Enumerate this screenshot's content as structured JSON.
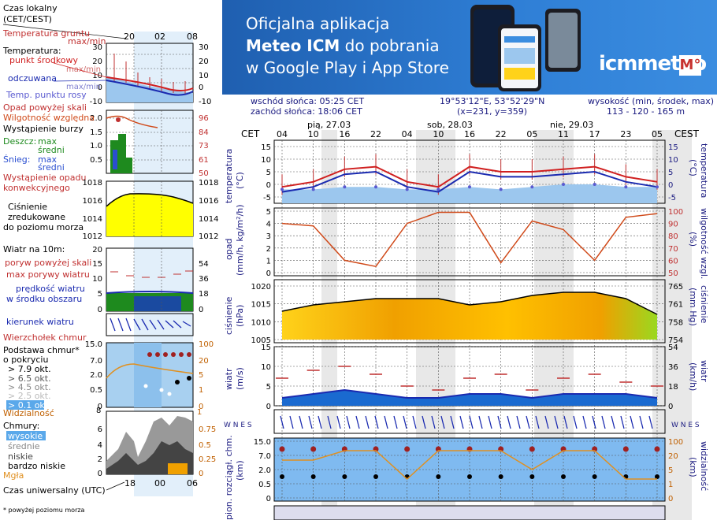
{
  "banner": {
    "line1": "Oficjalna aplikacja",
    "line2_bold": "Meteo ICM",
    "line2_rest": " do pobrania",
    "line3": "w Google Play i App Store",
    "brand": "icmmeteo",
    "brand_box": "M°"
  },
  "info": {
    "sunrise": "wschód słońca: 05:25 CET",
    "sunset": "zachód słońca: 18:06 CET",
    "coords": "19°53'12\"E, 53°52'29\"N",
    "grid": "(x=231, y=359)",
    "height_label": "wysokość (min, środek, max)",
    "height_values": "113 - 120 - 165 m"
  },
  "legend": {
    "local_time": "Czas lokalny",
    "local_time2": "(CET/CEST)",
    "ground_temp": "Temperatura gruntu",
    "ground_temp2": "max/min",
    "temperature": "Temperatura:",
    "mid_point": "punkt środkowy",
    "maxmin": "max/min",
    "feels": "odczuwana",
    "feels_maxmin": "max/min",
    "dew": "Temp. punktu rosy",
    "precip_above": "Opad powyżej skali",
    "humidity": "Wilgotność względna",
    "storm": "Wystąpienie burzy",
    "rain": "Deszcz:",
    "rain_max": "max",
    "rain_mid": "średni",
    "snow": "Śnieg:",
    "snow_max": "max",
    "snow_mid": "średni",
    "precip_occ": "Wystąpienie opadu",
    "convective": "konwekcyjnego",
    "pressure1": "Ciśnienie",
    "pressure2": "zredukowane",
    "pressure3": "do poziomu morza",
    "wind10": "Wiatr na 10m:",
    "gust_above": "poryw powyżej skali",
    "gust_max": "max porywy wiatru",
    "wind_speed": "prędkość wiatru",
    "wind_area": "w środku obszaru",
    "wind_dir": "kierunek wiatru",
    "cloud_top": "Wierzchołek chmur",
    "cloud_base": "Podstawa chmur*",
    "cloud_base2": "o pokryciu",
    "okt1": "> 7.9 okt.",
    "okt2": "> 6.5 okt.",
    "okt3": "> 4.5 okt.",
    "okt4": "> 2.5 okt.",
    "okt5": "> 0.1 okt.",
    "visibility": "Widzialność",
    "clouds": "Chmury:",
    "high": "wysokie",
    "mid": "średnie",
    "low": "niskie",
    "verylow": "bardzo niskie",
    "fog": "Mgła",
    "utc": "Czas uniwersalny (UTC)",
    "footnote": "* powyżej poziomu morza",
    "top_ticks": [
      "20",
      "02",
      "08"
    ],
    "bottom_ticks": [
      "18",
      "00",
      "06"
    ],
    "temp_ticks": [
      "30",
      "20",
      "10",
      "0",
      "-10"
    ],
    "hum_ticks_l": [
      "2.0",
      "1.5",
      "1.0",
      "0.5"
    ],
    "hum_ticks_r": [
      "96",
      "84",
      "73",
      "61",
      "50"
    ],
    "pres_ticks": [
      "1018",
      "1016",
      "1014",
      "1012"
    ],
    "wind_ticks_l": [
      "20",
      "15",
      "10",
      "5",
      "0"
    ],
    "wind_ticks_r": [
      "72",
      "54",
      "36",
      "18",
      "0"
    ],
    "cb_ticks_l": [
      "15.0",
      "7.0",
      "2.0",
      "0.5",
      "0"
    ],
    "cb_ticks_r": [
      "100",
      "20",
      "5",
      "1",
      "0"
    ],
    "vis_ticks": [
      "8",
      "1"
    ],
    "cl_ticks_l": [
      "6",
      "4",
      "2",
      "0"
    ],
    "cl_ticks_r": [
      "0.75",
      "0.5",
      "0.25",
      "0"
    ]
  },
  "main_labels": {
    "cet_left": "CET",
    "cet_right": "CEST",
    "days": [
      "pią, 27.03",
      "sob, 28.03",
      "nie, 29.03"
    ],
    "hours": [
      "04",
      "10",
      "16",
      "22",
      "04",
      "10",
      "16",
      "22",
      "05",
      "11",
      "17",
      "23",
      "05"
    ],
    "temp_left": "temperatura",
    "temp_unit": "(°C)",
    "precip_left": "opad",
    "precip_unit": "(mm/h, kg/m²/h)",
    "hum_right": "wilgotność wzgl.",
    "hum_unit": "(%)",
    "pres_left": "ciśnienie",
    "pres_unit": "(hPa)",
    "pres_right": "ciśnienie",
    "pres_unit_r": "(mm Hg)",
    "wind_left": "wiatr",
    "wind_unit": "(m/s)",
    "wind_right": "wiatr",
    "wind_unit_r": "(km/h)",
    "cloud_left": "pion. rozciągł. chm.",
    "cloud_unit": "(km)",
    "vis_right": "widzialność",
    "vis_unit": "(km)",
    "dir_letters": "W N E S"
  },
  "chart_data": {
    "type": "line",
    "x": [
      "04",
      "10",
      "16",
      "22",
      "04",
      "10",
      "16",
      "22",
      "05",
      "11",
      "17",
      "23",
      "05"
    ],
    "temperature": {
      "ylim": [
        -5,
        15
      ],
      "ticks": [
        "15",
        "10",
        "5",
        "0",
        "-5"
      ],
      "mid": [
        -1,
        1,
        6,
        7,
        1,
        -1,
        7,
        5,
        5,
        6,
        7,
        3,
        1
      ],
      "feels": [
        -3,
        -1,
        4,
        5,
        -1,
        -3,
        5,
        3,
        3,
        4,
        5,
        1,
        -1
      ],
      "dew": [
        -2,
        -2,
        -1,
        -1,
        -2,
        -2,
        -1,
        -2,
        -1,
        0,
        0,
        -1,
        -1
      ]
    },
    "precip_humidity": {
      "ylim_precip": [
        0,
        5
      ],
      "ylim_hum": [
        50,
        100
      ],
      "ticks_l": [
        "5",
        "4",
        "3",
        "2",
        "1",
        "0"
      ],
      "ticks_r": [
        "100",
        "90",
        "80",
        "70",
        "60",
        "50"
      ],
      "humidity": [
        90,
        88,
        60,
        55,
        90,
        99,
        99,
        58,
        92,
        85,
        60,
        95,
        98
      ]
    },
    "pressure": {
      "ylim": [
        1005,
        1022
      ],
      "ticks_l": [
        "1020",
        "1015",
        "1010",
        "1005"
      ],
      "ticks_r": [
        "765",
        "761",
        "758",
        "754"
      ],
      "values": [
        1014,
        1016,
        1017,
        1018,
        1018,
        1018,
        1016,
        1017,
        1019,
        1020,
        1020,
        1018,
        1013
      ]
    },
    "wind": {
      "ylim": [
        0,
        15
      ],
      "ticks_l": [
        "15",
        "10",
        "5",
        "0"
      ],
      "ticks_r": [
        "54",
        "36",
        "18",
        "0"
      ],
      "speed": [
        2,
        3,
        4,
        3,
        2,
        2,
        3,
        3,
        2,
        3,
        3,
        3,
        2
      ],
      "gust": [
        7,
        9,
        10,
        8,
        5,
        4,
        7,
        8,
        4,
        7,
        8,
        6,
        5
      ]
    },
    "clouds": {
      "ticks_l": [
        "15.0",
        "7.0",
        "2.0",
        "0.5",
        "0"
      ],
      "ticks_r": [
        "100",
        "20",
        "5",
        "1",
        "0"
      ]
    }
  }
}
